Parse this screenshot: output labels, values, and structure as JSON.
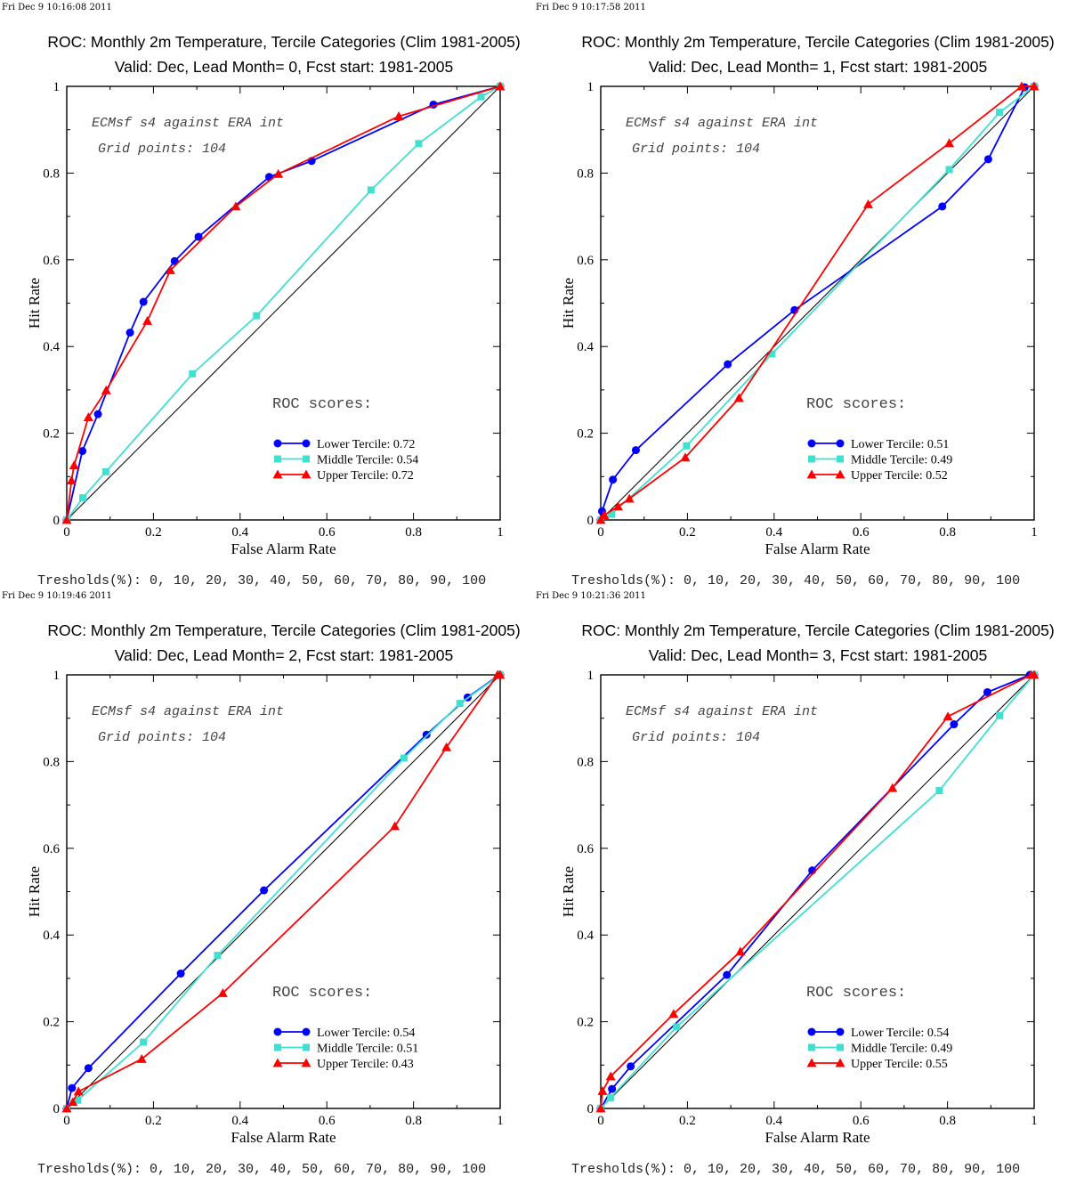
{
  "charts": [
    {
      "stamp": "Fri Dec  9 10:16:08 2011",
      "title": "ROC: Monthly 2m Temperature, Tercile Categories (Clim 1981-2005)",
      "subtitle": "Valid: Dec, Lead Month= 0, Fcst start: 1981-2005",
      "annotations": [
        "ECMsf s4 against ERA int",
        "Grid points:  104"
      ],
      "roc_header": "ROC scores:",
      "thresholds_text": "Tresholds(%): 0, 10, 20, 30, 40, 50, 60, 70, 80, 90, 100"
    },
    {
      "stamp": "Fri Dec  9 10:17:58 2011",
      "title": "ROC: Monthly 2m Temperature, Tercile Categories (Clim 1981-2005)",
      "subtitle": "Valid: Dec, Lead Month= 1, Fcst start: 1981-2005",
      "annotations": [
        "ECMsf s4 against ERA int",
        "Grid points:  104"
      ],
      "roc_header": "ROC scores:",
      "thresholds_text": "Tresholds(%): 0, 10, 20, 30, 40, 50, 60, 70, 80, 90, 100"
    },
    {
      "stamp": "Fri Dec  9 10:19:46 2011",
      "title": "ROC: Monthly 2m Temperature, Tercile Categories (Clim 1981-2005)",
      "subtitle": "Valid: Dec, Lead Month= 2, Fcst start: 1981-2005",
      "annotations": [
        "ECMsf s4 against ERA int",
        "Grid points:  104"
      ],
      "roc_header": "ROC scores:",
      "thresholds_text": "Tresholds(%): 0, 10, 20, 30, 40, 50, 60, 70, 80, 90, 100"
    },
    {
      "stamp": "Fri Dec  9 10:21:36 2011",
      "title": "ROC: Monthly 2m Temperature, Tercile Categories (Clim 1981-2005)",
      "subtitle": "Valid: Dec, Lead Month= 3, Fcst start: 1981-2005",
      "annotations": [
        "ECMsf s4 against ERA int",
        "Grid points:  104"
      ],
      "roc_header": "ROC scores:",
      "thresholds_text": "Tresholds(%): 0, 10, 20, 30, 40, 50, 60, 70, 80, 90, 100"
    }
  ],
  "chart_data": [
    {
      "type": "line",
      "title": "ROC: Monthly 2m Temperature, Tercile Categories (Clim 1981-2005)",
      "subtitle": "Valid: Dec, Lead Month= 0, Fcst start: 1981-2005",
      "xlabel": "False Alarm Rate",
      "ylabel": "Hit Rate",
      "xlim": [
        0,
        1
      ],
      "ylim": [
        0,
        1
      ],
      "xticks": [
        "0",
        "0.2",
        "0.4",
        "0.6",
        "0.8",
        "1"
      ],
      "yticks": [
        "0",
        "0.2",
        "0.4",
        "0.6",
        "0.8",
        "1"
      ],
      "grid": false,
      "legend_position": "lower-right",
      "diagonal": true,
      "series": [
        {
          "name": "Lower Tercile: 0.72",
          "color": "#0000ff",
          "marker": "circle",
          "x": [
            0,
            0.036,
            0.072,
            0.146,
            0.177,
            0.249,
            0.304,
            0.467,
            0.565,
            0.846,
            1
          ],
          "y": [
            0,
            0.159,
            0.244,
            0.432,
            0.503,
            0.597,
            0.653,
            0.791,
            0.828,
            0.958,
            1
          ]
        },
        {
          "name": "Middle Tercile: 0.54",
          "color": "#40e0d0",
          "marker": "square",
          "x": [
            0,
            0.037,
            0.09,
            0.29,
            0.438,
            0.702,
            0.812,
            0.956,
            1
          ],
          "y": [
            0,
            0.051,
            0.111,
            0.337,
            0.471,
            0.761,
            0.868,
            0.976,
            1
          ]
        },
        {
          "name": "Upper Tercile: 0.72",
          "color": "#ff0000",
          "marker": "triangle",
          "x": [
            0,
            0.011,
            0.017,
            0.05,
            0.091,
            0.186,
            0.239,
            0.39,
            0.488,
            0.766,
            1
          ],
          "y": [
            0,
            0.091,
            0.126,
            0.237,
            0.299,
            0.459,
            0.576,
            0.723,
            0.798,
            0.931,
            1
          ]
        }
      ]
    },
    {
      "type": "line",
      "title": "ROC: Monthly 2m Temperature, Tercile Categories (Clim 1981-2005)",
      "subtitle": "Valid: Dec, Lead Month= 1, Fcst start: 1981-2005",
      "xlabel": "False Alarm Rate",
      "ylabel": "Hit Rate",
      "xlim": [
        0,
        1
      ],
      "ylim": [
        0,
        1
      ],
      "xticks": [
        "0",
        "0.2",
        "0.4",
        "0.6",
        "0.8",
        "1"
      ],
      "yticks": [
        "0",
        "0.2",
        "0.4",
        "0.6",
        "0.8",
        "1"
      ],
      "grid": false,
      "legend_position": "lower-right",
      "diagonal": true,
      "series": [
        {
          "name": "Lower Tercile: 0.51",
          "color": "#0000ff",
          "marker": "circle",
          "x": [
            0,
            0.003,
            0.028,
            0.081,
            0.293,
            0.447,
            0.788,
            0.894,
            0.978,
            1
          ],
          "y": [
            0,
            0.02,
            0.093,
            0.161,
            0.359,
            0.484,
            0.723,
            0.832,
            0.998,
            1
          ]
        },
        {
          "name": "Middle Tercile: 0.49",
          "color": "#40e0d0",
          "marker": "square",
          "x": [
            0,
            0.025,
            0.198,
            0.395,
            0.804,
            0.92,
            1
          ],
          "y": [
            0,
            0.013,
            0.171,
            0.383,
            0.808,
            0.94,
            1
          ]
        },
        {
          "name": "Upper Tercile: 0.52",
          "color": "#ff0000",
          "marker": "triangle",
          "x": [
            0,
            0.008,
            0.04,
            0.066,
            0.195,
            0.319,
            0.617,
            0.804,
            0.971,
            1
          ],
          "y": [
            0,
            0.011,
            0.031,
            0.049,
            0.144,
            0.281,
            0.728,
            0.869,
            1,
            1
          ]
        }
      ]
    },
    {
      "type": "line",
      "title": "ROC: Monthly 2m Temperature, Tercile Categories (Clim 1981-2005)",
      "subtitle": "Valid: Dec, Lead Month= 2, Fcst start: 1981-2005",
      "xlabel": "False Alarm Rate",
      "ylabel": "Hit Rate",
      "xlim": [
        0,
        1
      ],
      "ylim": [
        0,
        1
      ],
      "xticks": [
        "0",
        "0.2",
        "0.4",
        "0.6",
        "0.8",
        "1"
      ],
      "yticks": [
        "0",
        "0.2",
        "0.4",
        "0.6",
        "0.8",
        "1"
      ],
      "grid": false,
      "legend_position": "lower-right",
      "diagonal": true,
      "series": [
        {
          "name": "Lower Tercile: 0.54",
          "color": "#0000ff",
          "marker": "circle",
          "x": [
            0,
            0.012,
            0.05,
            0.263,
            0.455,
            0.83,
            0.925,
            0.998,
            1
          ],
          "y": [
            0,
            0.047,
            0.093,
            0.311,
            0.503,
            0.862,
            0.948,
            1,
            1
          ]
        },
        {
          "name": "Middle Tercile: 0.51",
          "color": "#40e0d0",
          "marker": "square",
          "x": [
            0,
            0.025,
            0.177,
            0.348,
            0.778,
            0.907,
            1
          ],
          "y": [
            0,
            0.019,
            0.153,
            0.353,
            0.808,
            0.934,
            1
          ]
        },
        {
          "name": "Upper Tercile: 0.43",
          "color": "#ff0000",
          "marker": "triangle",
          "x": [
            0,
            0.014,
            0.027,
            0.173,
            0.36,
            0.757,
            0.876,
            0.994,
            1
          ],
          "y": [
            0,
            0.015,
            0.039,
            0.114,
            0.266,
            0.651,
            0.833,
            1,
            1
          ]
        }
      ]
    },
    {
      "type": "line",
      "title": "ROC: Monthly 2m Temperature, Tercile Categories (Clim 1981-2005)",
      "subtitle": "Valid: Dec, Lead Month= 3, Fcst start: 1981-2005",
      "xlabel": "False Alarm Rate",
      "ylabel": "Hit Rate",
      "xlim": [
        0,
        1
      ],
      "ylim": [
        0,
        1
      ],
      "xticks": [
        "0",
        "0.2",
        "0.4",
        "0.6",
        "0.8",
        "1"
      ],
      "yticks": [
        "0",
        "0.2",
        "0.4",
        "0.6",
        "0.8",
        "1"
      ],
      "grid": false,
      "legend_position": "lower-right",
      "diagonal": true,
      "series": [
        {
          "name": "Lower Tercile: 0.54",
          "color": "#0000ff",
          "marker": "circle",
          "x": [
            0,
            0.026,
            0.069,
            0.291,
            0.488,
            0.815,
            0.892,
            0.99,
            1
          ],
          "y": [
            0,
            0.045,
            0.097,
            0.308,
            0.549,
            0.886,
            0.96,
            1,
            1
          ]
        },
        {
          "name": "Middle Tercile: 0.49",
          "color": "#40e0d0",
          "marker": "square",
          "x": [
            0,
            0.023,
            0.175,
            0.781,
            0.92,
            1
          ],
          "y": [
            0,
            0.025,
            0.188,
            0.733,
            0.906,
            1
          ]
        },
        {
          "name": "Upper Tercile: 0.55",
          "color": "#ff0000",
          "marker": "triangle",
          "x": [
            0,
            0.004,
            0.023,
            0.168,
            0.322,
            0.673,
            0.801,
            0.993,
            1
          ],
          "y": [
            0,
            0.04,
            0.074,
            0.218,
            0.362,
            0.739,
            0.904,
            1,
            1
          ]
        }
      ]
    }
  ]
}
